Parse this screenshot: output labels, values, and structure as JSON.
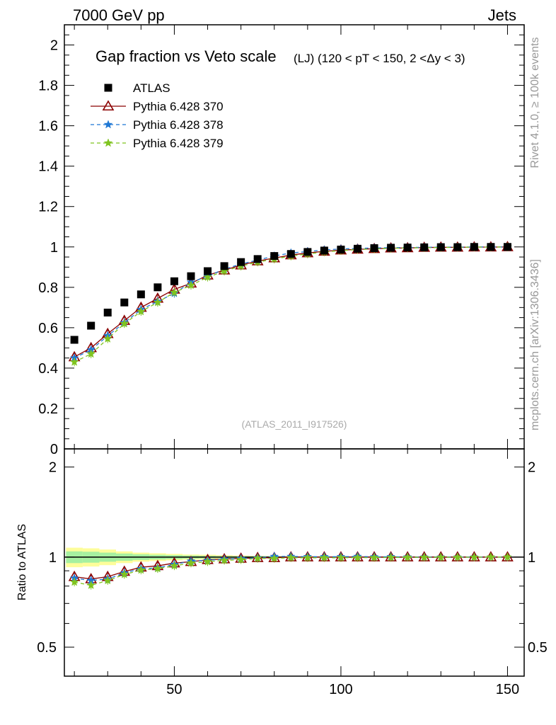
{
  "header": {
    "left": "7000 GeV pp",
    "right": "Jets"
  },
  "side_text": {
    "rivet": "Rivet 4.1.0, ≥ 100k events",
    "mcplots": "mcplots.cern.ch [arXiv:1306.3436]"
  },
  "chart_data": [
    {
      "type": "scatter",
      "panel": "main",
      "title": "Gap fraction vs Veto scale",
      "subtitle": "(LJ) (120 < pT < 150, 2 <Δy < 3)",
      "watermark": "(ATLAS_2011_I917526)",
      "xlim": [
        17,
        155
      ],
      "ylim": [
        0,
        2.1
      ],
      "yticks": [
        "0",
        "0.2",
        "0.4",
        "0.6",
        "0.8",
        "1",
        "1.2",
        "1.4",
        "1.6",
        "1.8",
        "2"
      ],
      "legend_position": "top-left",
      "x": [
        20,
        25,
        30,
        35,
        40,
        45,
        50,
        55,
        60,
        65,
        70,
        75,
        80,
        85,
        90,
        95,
        100,
        105,
        110,
        115,
        120,
        125,
        130,
        135,
        140,
        145,
        150
      ],
      "series": [
        {
          "name": "ATLAS",
          "marker": "square",
          "color": "#000000",
          "values": [
            0.54,
            0.61,
            0.675,
            0.725,
            0.765,
            0.8,
            0.83,
            0.855,
            0.88,
            0.905,
            0.925,
            0.94,
            0.955,
            0.965,
            0.975,
            0.982,
            0.987,
            0.991,
            0.994,
            0.996,
            0.997,
            0.998,
            0.999,
            0.999,
            1.0,
            1.0,
            1.0
          ]
        },
        {
          "name": "Pythia 6.428 370",
          "marker": "triangle-open",
          "color": "#8b0000",
          "dash": "solid",
          "values": [
            0.455,
            0.5,
            0.57,
            0.635,
            0.7,
            0.745,
            0.79,
            0.82,
            0.86,
            0.885,
            0.91,
            0.93,
            0.945,
            0.96,
            0.97,
            0.978,
            0.984,
            0.988,
            0.991,
            0.994,
            0.995,
            0.997,
            0.998,
            0.998,
            0.999,
            0.999,
            1.0
          ]
        },
        {
          "name": "Pythia 6.428 378",
          "marker": "star",
          "color": "#1f78d4",
          "dash": "dashed",
          "values": [
            0.45,
            0.49,
            0.56,
            0.625,
            0.69,
            0.73,
            0.77,
            0.825,
            0.855,
            0.89,
            0.915,
            0.935,
            0.955,
            0.97,
            0.977,
            0.985,
            0.99,
            0.993,
            0.995,
            0.996,
            0.997,
            0.998,
            0.999,
            0.999,
            1.0,
            1.0,
            1.0
          ]
        },
        {
          "name": "Pythia 6.428 379",
          "marker": "star",
          "color": "#7fc41f",
          "dash": "dashed",
          "values": [
            0.43,
            0.47,
            0.545,
            0.62,
            0.68,
            0.725,
            0.775,
            0.81,
            0.85,
            0.88,
            0.905,
            0.925,
            0.94,
            0.955,
            0.965,
            0.975,
            0.982,
            0.987,
            0.99,
            0.993,
            0.995,
            0.996,
            0.997,
            0.998,
            0.999,
            0.999,
            1.0
          ]
        }
      ]
    },
    {
      "type": "scatter",
      "panel": "ratio",
      "ylabel": "Ratio to ATLAS",
      "xlim": [
        17,
        155
      ],
      "ylim": [
        0.4,
        2.3
      ],
      "yscale": "log",
      "xticks": [
        "50",
        "100",
        "150"
      ],
      "yticks": [
        "0.5",
        "1",
        "2"
      ],
      "band": {
        "x": [
          17.5,
          22.5,
          27.5,
          32.5,
          37.5,
          42.5,
          47.5,
          52.5,
          57.5,
          62.5,
          67.5,
          72.5,
          77.5,
          82.5,
          87.5,
          92.5,
          97.5
        ],
        "yellow_half": [
          0.075,
          0.07,
          0.06,
          0.045,
          0.035,
          0.03,
          0.025,
          0.02,
          0.018,
          0.015,
          0.012,
          0.01,
          0.008,
          0.006,
          0.005,
          0.004,
          0.003
        ],
        "green_half": [
          0.045,
          0.042,
          0.035,
          0.028,
          0.022,
          0.018,
          0.015,
          0.012,
          0.01,
          0.008,
          0.007,
          0.006,
          0.005,
          0.004,
          0.003,
          0.003,
          0.002
        ]
      },
      "x": [
        20,
        25,
        30,
        35,
        40,
        45,
        50,
        55,
        60,
        65,
        70,
        75,
        80,
        85,
        90,
        95,
        100,
        105,
        110,
        115,
        120,
        125,
        130,
        135,
        140,
        145,
        150
      ],
      "series": [
        {
          "name": "Pythia 6.428 370",
          "marker": "triangle-open",
          "color": "#8b0000",
          "dash": "solid",
          "values": [
            0.86,
            0.845,
            0.86,
            0.895,
            0.925,
            0.935,
            0.955,
            0.965,
            0.98,
            0.985,
            0.99,
            0.995,
            0.995,
            1.0,
            1.0,
            1.0,
            1.0,
            1.0,
            1.0,
            1.0,
            1.0,
            1.0,
            1.0,
            1.0,
            1.0,
            1.0,
            1.0
          ]
        },
        {
          "name": "Pythia 6.428 378",
          "marker": "star",
          "color": "#1f78d4",
          "dash": "dashed",
          "values": [
            0.85,
            0.835,
            0.845,
            0.885,
            0.915,
            0.92,
            0.945,
            0.97,
            0.975,
            0.985,
            0.99,
            0.995,
            1.005,
            1.005,
            1.003,
            1.003,
            1.003,
            1.005,
            1.002,
            1.003,
            1.001,
            1.0,
            1.0,
            1.0,
            1.0,
            1.0,
            1.0
          ]
        },
        {
          "name": "Pythia 6.428 379",
          "marker": "star",
          "color": "#7fc41f",
          "dash": "dashed",
          "values": [
            0.825,
            0.805,
            0.835,
            0.875,
            0.905,
            0.915,
            0.935,
            0.955,
            0.965,
            0.975,
            0.98,
            0.99,
            0.99,
            0.995,
            0.995,
            0.995,
            0.995,
            0.996,
            0.996,
            0.997,
            0.998,
            0.998,
            0.998,
            0.999,
            0.999,
            1.0,
            1.0
          ]
        }
      ]
    }
  ]
}
